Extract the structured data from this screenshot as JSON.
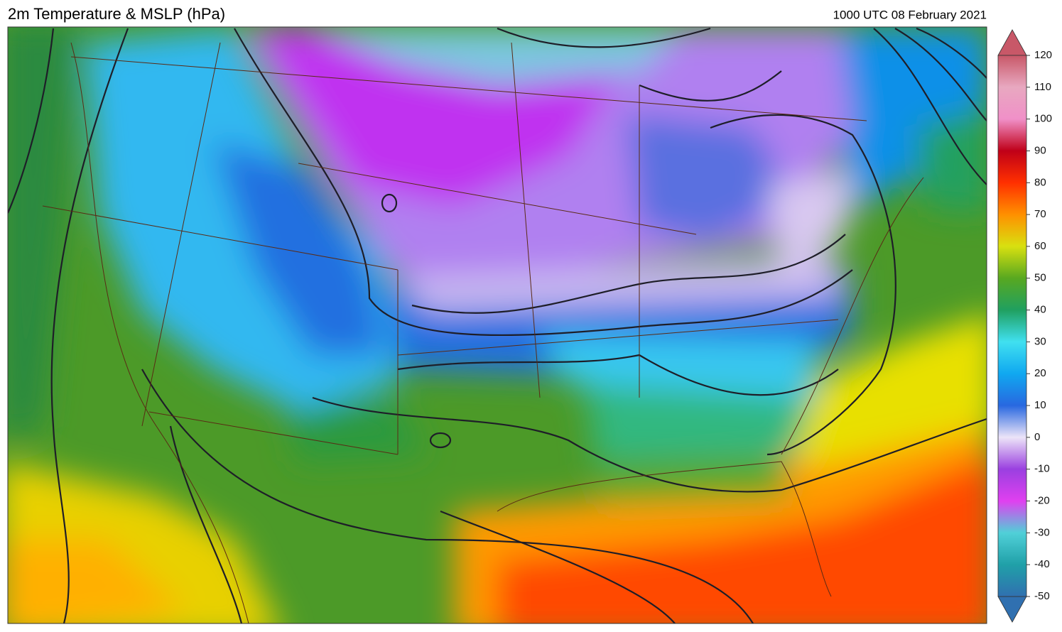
{
  "header": {
    "title": "2m Temperature & MSLP (hPa)",
    "timestamp": "1000 UTC 08 February 2021"
  },
  "colorbar": {
    "lim": [
      -50,
      120
    ],
    "ticks": [
      120,
      110,
      100,
      90,
      80,
      70,
      60,
      50,
      40,
      30,
      20,
      10,
      0,
      -10,
      -20,
      -30,
      -40,
      -50
    ],
    "colors": [
      "#c85868",
      "#e8a8c0",
      "#f090c8",
      "#c00018",
      "#ff3000",
      "#ff9000",
      "#d8e010",
      "#58a820",
      "#20a060",
      "#40e0f0",
      "#10a8f0",
      "#2868e0",
      "#ece4f8",
      "#9a40e0",
      "#e040f0",
      "#50d0d8",
      "#20a0a8",
      "#3070b0"
    ]
  }
}
